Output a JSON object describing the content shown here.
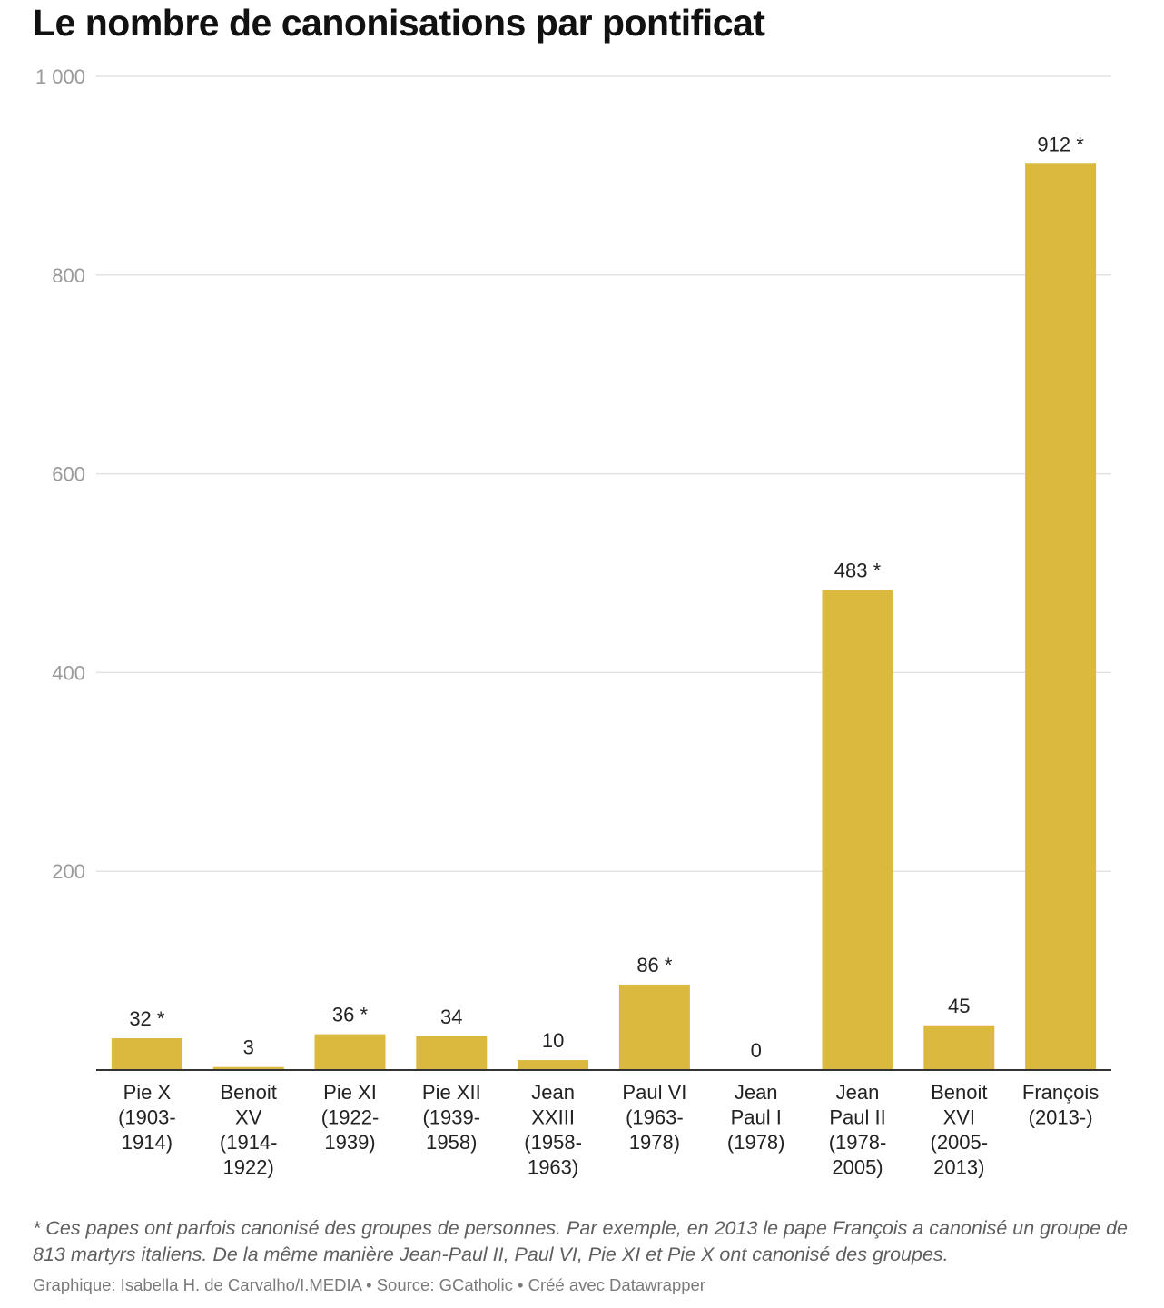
{
  "title": "Le nombre de canonisations par pontificat",
  "chart_data": {
    "type": "bar",
    "title": "Le nombre de canonisations par pontificat",
    "categories": [
      [
        "Pie X",
        "(1903-",
        "1914)"
      ],
      [
        "Benoit",
        "XV",
        "(1914-",
        "1922)"
      ],
      [
        "Pie XI",
        "(1922-",
        "1939)"
      ],
      [
        "Pie XII",
        "(1939-",
        "1958)"
      ],
      [
        "Jean",
        "XXIII",
        "(1958-",
        "1963)"
      ],
      [
        "Paul VI",
        "(1963-",
        "1978)"
      ],
      [
        "Jean",
        "Paul I",
        "(1978)"
      ],
      [
        "Jean",
        "Paul II",
        "(1978-",
        "2005)"
      ],
      [
        "Benoit",
        "XVI",
        "(2005-",
        "2013)"
      ],
      [
        "François",
        "(2013-)"
      ]
    ],
    "values": [
      32,
      3,
      36,
      34,
      10,
      86,
      0,
      483,
      45,
      912
    ],
    "value_labels": [
      "32 *",
      "3",
      "36 *",
      "34",
      "10",
      "86 *",
      "0",
      "483 *",
      "45",
      "912 *"
    ],
    "y_ticks": [
      0,
      200,
      400,
      600,
      800,
      1000
    ],
    "y_tick_labels": [
      "",
      "200",
      "400",
      "600",
      "800",
      "1 000"
    ],
    "ylim": [
      0,
      1000
    ],
    "bar_color": "#dbb93f",
    "grid": true,
    "xlabel": "",
    "ylabel": ""
  },
  "footnote": "* Ces papes ont parfois canonisé des groupes de personnes. Par exemple, en 2013 le pape François a canonisé un groupe de 813 martyrs italiens. De la même manière Jean-Paul II, Paul VI, Pie XI et Pie X ont canonisé des groupes.",
  "credit": "Graphique: Isabella H. de Carvalho/I.MEDIA • Source: GCatholic • Créé avec Datawrapper"
}
